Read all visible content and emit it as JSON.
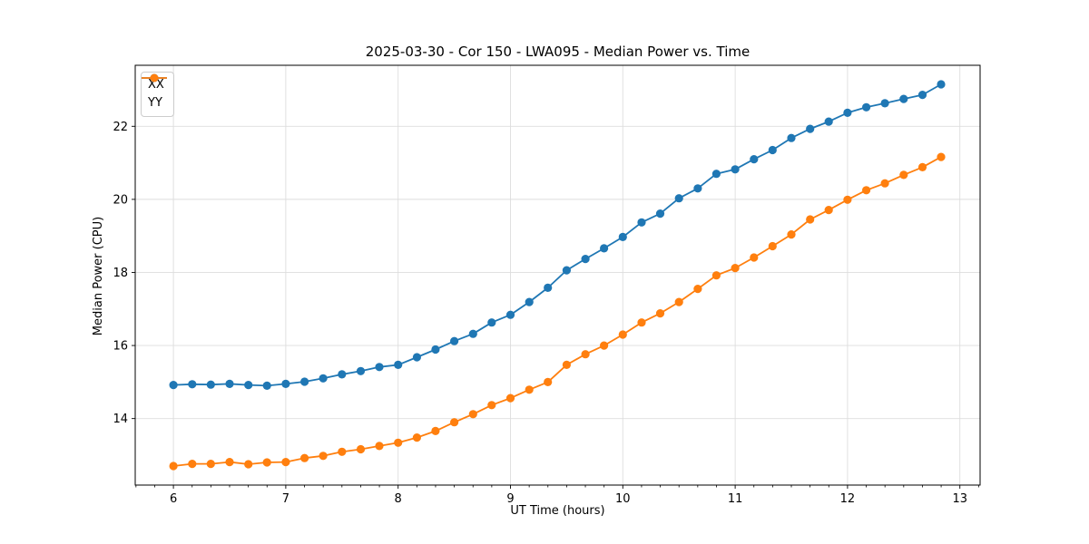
{
  "chart_data": {
    "type": "line",
    "title": "2025-03-30 - Cor 150 - LWA095 - Median Power vs. Time",
    "xlabel": "UT Time (hours)",
    "ylabel": "Median Power (CPU)",
    "xlim": [
      5.66,
      13.18
    ],
    "ylim": [
      12.18,
      23.67
    ],
    "x_ticks": [
      6,
      7,
      8,
      9,
      10,
      11,
      12,
      13
    ],
    "y_ticks": [
      14,
      16,
      18,
      20,
      22
    ],
    "x_minor_step": 0.1666667,
    "grid": true,
    "grid_color": "#dddddd",
    "legend_position": "upper-left",
    "x": [
      6.0,
      6.167,
      6.333,
      6.5,
      6.667,
      6.833,
      7.0,
      7.167,
      7.333,
      7.5,
      7.667,
      7.833,
      8.0,
      8.167,
      8.333,
      8.5,
      8.667,
      8.833,
      9.0,
      9.167,
      9.333,
      9.5,
      9.667,
      9.833,
      10.0,
      10.167,
      10.333,
      10.5,
      10.667,
      10.833,
      11.0,
      11.167,
      11.333,
      11.5,
      11.667,
      11.833,
      12.0,
      12.167,
      12.333,
      12.5,
      12.667,
      12.833
    ],
    "series": [
      {
        "name": "XX",
        "color": "#1f77b4",
        "values": [
          14.92,
          14.94,
          14.93,
          14.95,
          14.92,
          14.9,
          14.95,
          15.01,
          15.1,
          15.21,
          15.3,
          15.41,
          15.47,
          15.68,
          15.89,
          16.12,
          16.32,
          16.63,
          16.84,
          17.19,
          17.58,
          18.06,
          18.37,
          18.66,
          18.97,
          19.37,
          19.61,
          20.03,
          20.3,
          20.7,
          20.82,
          21.1,
          21.35,
          21.68,
          21.93,
          22.13,
          22.37,
          22.52,
          22.63,
          22.75,
          22.86,
          23.15
        ]
      },
      {
        "name": "YY",
        "color": "#ff7f0e",
        "values": [
          12.7,
          12.76,
          12.76,
          12.81,
          12.75,
          12.8,
          12.81,
          12.92,
          12.98,
          13.09,
          13.16,
          13.25,
          13.34,
          13.48,
          13.66,
          13.9,
          14.12,
          14.37,
          14.56,
          14.79,
          15.0,
          15.47,
          15.76,
          16.0,
          16.3,
          16.63,
          16.88,
          17.19,
          17.55,
          17.92,
          18.12,
          18.41,
          18.72,
          19.04,
          19.45,
          19.71,
          19.99,
          20.25,
          20.44,
          20.67,
          20.88,
          21.16
        ]
      }
    ]
  }
}
